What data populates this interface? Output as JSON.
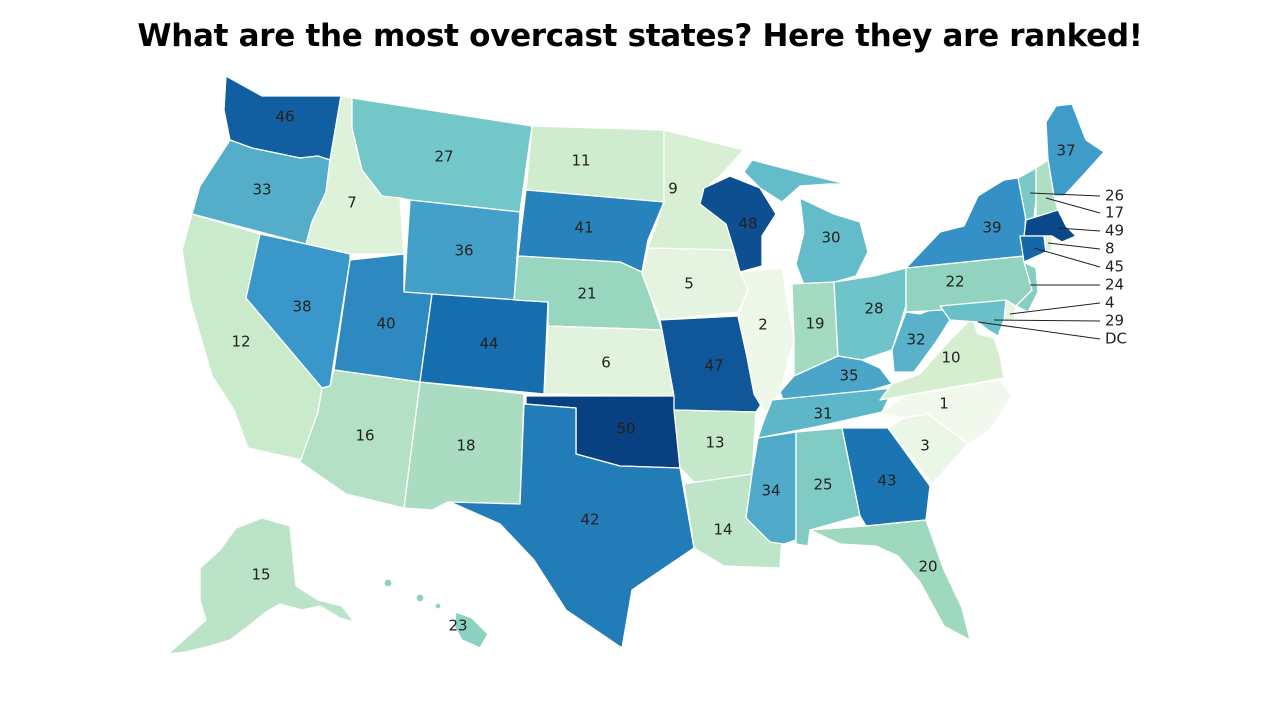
{
  "title": "What are the most overcast states? Here they are ranked!",
  "color_scale": {
    "low": "#f1f9ec",
    "mid_low": "#d5eed0",
    "mid": "#9ed8bd",
    "mid_high": "#6ec4c9",
    "high": "#3a97c9",
    "top": "#0a4a8e"
  },
  "states": [
    {
      "name": "WA",
      "rank": "46"
    },
    {
      "name": "OR",
      "rank": "33"
    },
    {
      "name": "CA",
      "rank": "12"
    },
    {
      "name": "ID",
      "rank": "7"
    },
    {
      "name": "NV",
      "rank": "38"
    },
    {
      "name": "MT",
      "rank": "27"
    },
    {
      "name": "WY",
      "rank": "36"
    },
    {
      "name": "UT",
      "rank": "40"
    },
    {
      "name": "AZ",
      "rank": "16"
    },
    {
      "name": "CO",
      "rank": "44"
    },
    {
      "name": "NM",
      "rank": "18"
    },
    {
      "name": "ND",
      "rank": "11"
    },
    {
      "name": "SD",
      "rank": "41"
    },
    {
      "name": "NE",
      "rank": "21"
    },
    {
      "name": "KS",
      "rank": "6"
    },
    {
      "name": "OK",
      "rank": "50"
    },
    {
      "name": "TX",
      "rank": "42"
    },
    {
      "name": "MN",
      "rank": "9"
    },
    {
      "name": "IA",
      "rank": "5"
    },
    {
      "name": "MO",
      "rank": "47"
    },
    {
      "name": "AR",
      "rank": "13"
    },
    {
      "name": "LA",
      "rank": "14"
    },
    {
      "name": "WI",
      "rank": "48"
    },
    {
      "name": "IL",
      "rank": "2"
    },
    {
      "name": "MI",
      "rank": "30"
    },
    {
      "name": "IN",
      "rank": "19"
    },
    {
      "name": "OH",
      "rank": "28"
    },
    {
      "name": "KY",
      "rank": "35"
    },
    {
      "name": "TN",
      "rank": "31"
    },
    {
      "name": "MS",
      "rank": "34"
    },
    {
      "name": "AL",
      "rank": "25"
    },
    {
      "name": "GA",
      "rank": "43"
    },
    {
      "name": "FL",
      "rank": "20"
    },
    {
      "name": "SC",
      "rank": "3"
    },
    {
      "name": "NC",
      "rank": "1"
    },
    {
      "name": "VA",
      "rank": "10"
    },
    {
      "name": "WV",
      "rank": "32"
    },
    {
      "name": "PA",
      "rank": "22"
    },
    {
      "name": "NY",
      "rank": "39"
    },
    {
      "name": "ME",
      "rank": "37"
    },
    {
      "name": "AK",
      "rank": "15"
    },
    {
      "name": "HI",
      "rank": "23"
    }
  ],
  "callouts": [
    {
      "name": "VT",
      "rank": "26"
    },
    {
      "name": "NH",
      "rank": "17"
    },
    {
      "name": "MA",
      "rank": "49"
    },
    {
      "name": "RI",
      "rank": "8"
    },
    {
      "name": "CT",
      "rank": "45"
    },
    {
      "name": "NJ",
      "rank": "24"
    },
    {
      "name": "DE",
      "rank": "4"
    },
    {
      "name": "MD",
      "rank": "29"
    },
    {
      "name": "DC",
      "rank": "DC"
    }
  ]
}
